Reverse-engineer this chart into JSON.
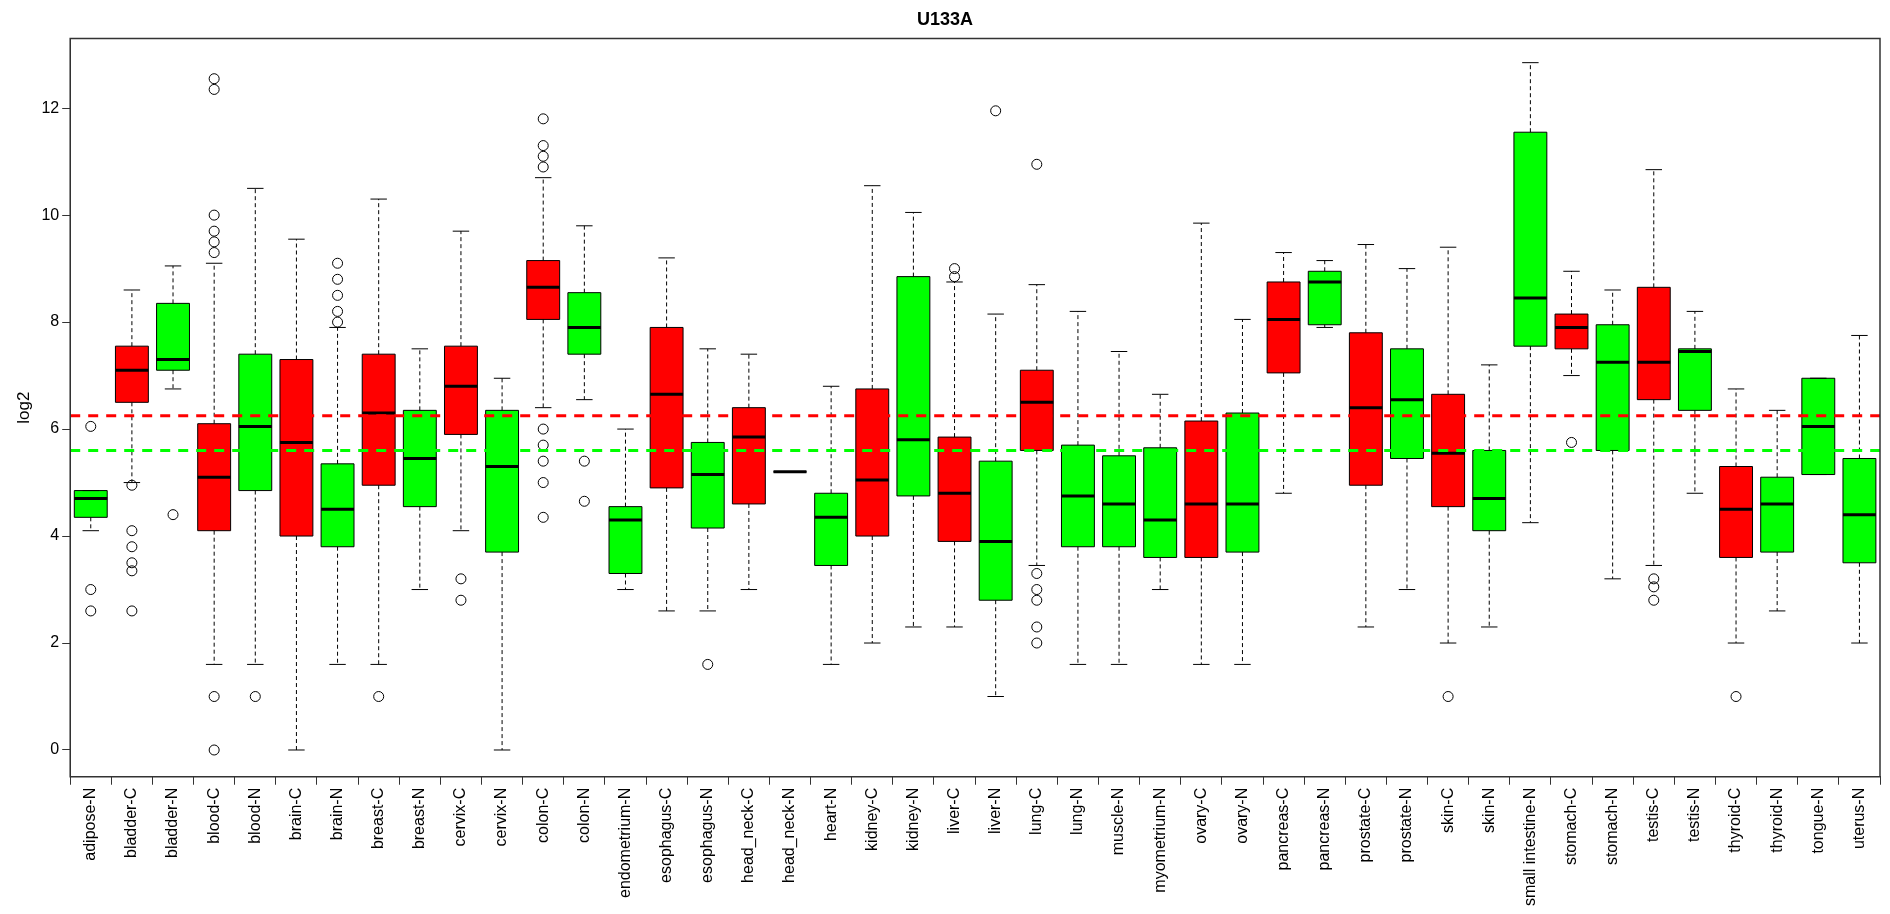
{
  "chart_data": {
    "type": "box",
    "title": "U133A",
    "ylabel": "log2",
    "categories": [
      "adipose-N",
      "bladder-C",
      "bladder-N",
      "blood-C",
      "blood-N",
      "brain-C",
      "brain-N",
      "breast-C",
      "breast-N",
      "cervix-C",
      "cervix-N",
      "colon-C",
      "colon-N",
      "endometrium-N",
      "esophagus-C",
      "esophagus-N",
      "head_neck-C",
      "head_neck-N",
      "heart-N",
      "kidney-C",
      "kidney-N",
      "liver-C",
      "liver-N",
      "lung-C",
      "lung-N",
      "muscle-N",
      "myometrium-N",
      "ovary-C",
      "ovary-N",
      "pancreas-C",
      "pancreas-N",
      "prostate-C",
      "prostate-N",
      "skin-C",
      "skin-N",
      "small intestine-N",
      "stomach-C",
      "stomach-N",
      "testis-C",
      "testis-N",
      "thyroid-C",
      "thyroid-N",
      "tongue-N",
      "uterus-N"
    ],
    "colors": [
      "#00ff00",
      "#ff0000",
      "#00ff00",
      "#ff0000",
      "#00ff00",
      "#ff0000",
      "#00ff00",
      "#ff0000",
      "#00ff00",
      "#ff0000",
      "#00ff00",
      "#ff0000",
      "#00ff00",
      "#00ff00",
      "#ff0000",
      "#00ff00",
      "#ff0000",
      "#000000",
      "#00ff00",
      "#ff0000",
      "#00ff00",
      "#ff0000",
      "#00ff00",
      "#ff0000",
      "#00ff00",
      "#00ff00",
      "#00ff00",
      "#ff0000",
      "#00ff00",
      "#ff0000",
      "#00ff00",
      "#ff0000",
      "#00ff00",
      "#ff0000",
      "#00ff00",
      "#00ff00",
      "#ff0000",
      "#00ff00",
      "#ff0000",
      "#00ff00",
      "#ff0000",
      "#00ff00",
      "#00ff00",
      "#00ff00"
    ],
    "boxes": [
      {
        "low": 4.1,
        "q1": 4.35,
        "median": 4.7,
        "q3": 4.85,
        "high": 4.85,
        "outliers": [
          6.05,
          3.0,
          2.6
        ]
      },
      {
        "low": 5.0,
        "q1": 6.5,
        "median": 7.1,
        "q3": 7.55,
        "high": 8.6,
        "outliers": [
          4.95,
          4.1,
          3.8,
          3.5,
          3.35,
          2.6
        ]
      },
      {
        "low": 6.75,
        "q1": 7.1,
        "median": 7.3,
        "q3": 8.35,
        "high": 9.05,
        "outliers": [
          4.4
        ]
      },
      {
        "low": 1.6,
        "q1": 4.1,
        "median": 5.1,
        "q3": 6.1,
        "high": 9.1,
        "outliers": [
          9.3,
          9.5,
          9.7,
          10.0,
          12.35,
          12.55,
          1.0,
          0.0
        ]
      },
      {
        "low": 1.6,
        "q1": 4.85,
        "median": 6.05,
        "q3": 7.4,
        "high": 10.5,
        "outliers": [
          1.0
        ]
      },
      {
        "low": 0.0,
        "q1": 4.0,
        "median": 5.75,
        "q3": 7.3,
        "high": 9.55
      },
      {
        "low": 1.6,
        "q1": 3.8,
        "median": 4.5,
        "q3": 5.35,
        "high": 7.9,
        "outliers": [
          8.0,
          8.2,
          8.5,
          8.8,
          9.1
        ]
      },
      {
        "low": 1.6,
        "q1": 4.95,
        "median": 6.3,
        "q3": 7.4,
        "high": 10.3,
        "outliers": [
          1.0
        ]
      },
      {
        "low": 3.0,
        "q1": 4.55,
        "median": 5.45,
        "q3": 6.35,
        "high": 7.5
      },
      {
        "low": 4.1,
        "q1": 5.9,
        "median": 6.8,
        "q3": 7.55,
        "high": 9.7,
        "outliers": [
          3.2,
          2.8
        ]
      },
      {
        "low": 0.0,
        "q1": 3.7,
        "median": 5.3,
        "q3": 6.35,
        "high": 6.95
      },
      {
        "low": 6.4,
        "q1": 8.05,
        "median": 8.65,
        "q3": 9.15,
        "high": 10.7,
        "outliers": [
          10.9,
          11.1,
          11.3,
          11.8,
          6.0,
          5.7,
          5.4,
          5.0,
          4.35
        ]
      },
      {
        "low": 6.55,
        "q1": 7.4,
        "median": 7.9,
        "q3": 8.55,
        "high": 9.8,
        "outliers": [
          5.4,
          4.65
        ]
      },
      {
        "low": 3.0,
        "q1": 3.3,
        "median": 4.3,
        "q3": 4.55,
        "high": 6.0
      },
      {
        "low": 2.6,
        "q1": 4.9,
        "median": 6.65,
        "q3": 7.9,
        "high": 9.2
      },
      {
        "low": 2.6,
        "q1": 4.15,
        "median": 5.15,
        "q3": 5.75,
        "high": 7.5,
        "outliers": [
          1.6
        ]
      },
      {
        "low": 3.0,
        "q1": 4.6,
        "median": 5.85,
        "q3": 6.4,
        "high": 7.4
      },
      {
        "low": 5.2,
        "q1": 5.2,
        "median": 5.2,
        "q3": 5.2,
        "high": 5.2
      },
      {
        "low": 1.6,
        "q1": 3.45,
        "median": 4.35,
        "q3": 4.8,
        "high": 6.8
      },
      {
        "low": 2.0,
        "q1": 4.0,
        "median": 5.05,
        "q3": 6.75,
        "high": 10.55
      },
      {
        "low": 2.3,
        "q1": 4.75,
        "median": 5.8,
        "q3": 8.85,
        "high": 10.05
      },
      {
        "low": 2.3,
        "q1": 3.9,
        "median": 4.8,
        "q3": 5.85,
        "high": 8.75,
        "outliers": [
          9.0,
          8.85
        ]
      },
      {
        "low": 1.0,
        "q1": 2.8,
        "median": 3.9,
        "q3": 5.4,
        "high": 8.15,
        "outliers": [
          11.95
        ]
      },
      {
        "low": 3.45,
        "q1": 5.6,
        "median": 6.5,
        "q3": 7.1,
        "high": 8.7,
        "outliers": [
          10.95,
          3.3,
          3.0,
          2.8,
          2.3,
          2.0
        ]
      },
      {
        "low": 1.6,
        "q1": 3.8,
        "median": 4.75,
        "q3": 5.7,
        "high": 8.2
      },
      {
        "low": 1.6,
        "q1": 3.8,
        "median": 4.6,
        "q3": 5.5,
        "high": 7.45
      },
      {
        "low": 3.0,
        "q1": 3.6,
        "median": 4.3,
        "q3": 5.65,
        "high": 6.65
      },
      {
        "low": 1.6,
        "q1": 3.6,
        "median": 4.6,
        "q3": 6.15,
        "high": 9.85
      },
      {
        "low": 1.6,
        "q1": 3.7,
        "median": 4.6,
        "q3": 6.3,
        "high": 8.05
      },
      {
        "low": 4.8,
        "q1": 7.05,
        "median": 8.05,
        "q3": 8.75,
        "high": 9.3
      },
      {
        "low": 7.9,
        "q1": 7.95,
        "median": 8.75,
        "q3": 8.95,
        "high": 9.15
      },
      {
        "low": 2.3,
        "q1": 4.95,
        "median": 6.4,
        "q3": 7.8,
        "high": 9.45
      },
      {
        "low": 3.0,
        "q1": 5.45,
        "median": 6.55,
        "q3": 7.5,
        "high": 9.0
      },
      {
        "low": 2.0,
        "q1": 4.55,
        "median": 5.55,
        "q3": 6.65,
        "high": 9.4,
        "outliers": [
          1.0
        ]
      },
      {
        "low": 2.3,
        "q1": 4.1,
        "median": 4.7,
        "q3": 5.6,
        "high": 7.2
      },
      {
        "low": 4.25,
        "q1": 7.55,
        "median": 8.45,
        "q3": 11.55,
        "high": 12.85
      },
      {
        "low": 7.0,
        "q1": 7.5,
        "median": 7.9,
        "q3": 8.15,
        "high": 8.95,
        "outliers": [
          5.75
        ]
      },
      {
        "low": 3.2,
        "q1": 5.6,
        "median": 7.25,
        "q3": 7.95,
        "high": 8.6
      },
      {
        "low": 3.45,
        "q1": 6.55,
        "median": 7.25,
        "q3": 8.65,
        "high": 10.85,
        "outliers": [
          3.2,
          3.05,
          2.8
        ]
      },
      {
        "low": 4.8,
        "q1": 6.35,
        "median": 7.45,
        "q3": 7.5,
        "high": 8.2
      },
      {
        "low": 2.0,
        "q1": 3.6,
        "median": 4.5,
        "q3": 5.3,
        "high": 6.75,
        "outliers": [
          1.0
        ]
      },
      {
        "low": 2.6,
        "q1": 3.7,
        "median": 4.6,
        "q3": 5.1,
        "high": 6.35
      },
      {
        "low": 5.15,
        "q1": 5.15,
        "median": 6.05,
        "q3": 6.95,
        "high": 6.95
      },
      {
        "low": 2.0,
        "q1": 3.5,
        "median": 4.4,
        "q3": 5.45,
        "high": 7.75
      }
    ],
    "ylim": [
      -0.5,
      13.3
    ],
    "yticks": [
      0,
      2,
      4,
      6,
      8,
      10,
      12
    ],
    "ref_lines": [
      {
        "axis": "y",
        "value": 6.25,
        "color": "#ff0000",
        "line_style": "dashed"
      },
      {
        "axis": "y",
        "value": 5.6,
        "color": "#00ff00",
        "line_style": "dashed"
      }
    ],
    "grid": false,
    "legend": false
  }
}
